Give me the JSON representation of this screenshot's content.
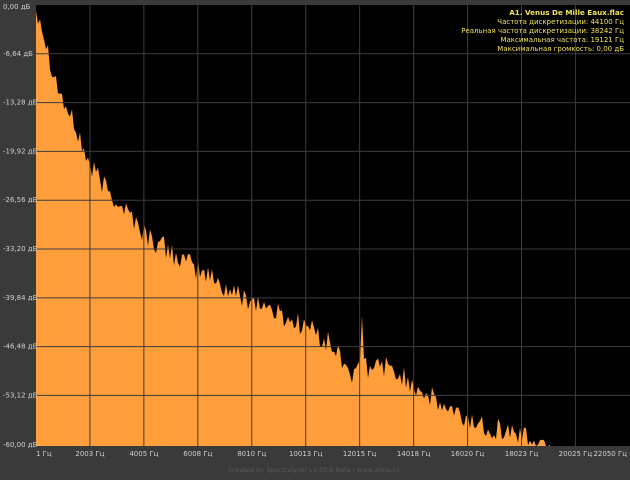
{
  "info": {
    "title": "A1. Venus De Mille Eaux.flac",
    "lines": [
      "Частота дискретизации: 44100 Гц",
      "Реальная частота дискретизации: 38242 Гц",
      "Максимальная частота: 19121 Гц",
      "Максимальная громкость: 0,00 дБ"
    ]
  },
  "footer": {
    "credit": "Created by Spectralyzer v1.00.6 Beta / www.aimp.ru"
  },
  "chart_data": {
    "type": "area",
    "title": "",
    "xlabel": "",
    "ylabel": "",
    "grid": true,
    "xlim": [
      1,
      22050
    ],
    "ylim": [
      -60,
      0
    ],
    "x_unit": "Гц",
    "y_unit": "дБ",
    "x_ticks": [
      1,
      2003,
      4005,
      6008,
      8010,
      10013,
      12015,
      14018,
      16020,
      18023,
      20025,
      22050
    ],
    "x_tick_labels": [
      "1 Гц",
      "2003 Гц",
      "4005 Гц",
      "6008 Гц",
      "8010 Гц",
      "10013 Гц",
      "12015 Гц",
      "14018 Гц",
      "16020 Гц",
      "18023 Гц",
      "20025 Гц",
      "22050 Гц"
    ],
    "y_ticks": [
      0,
      -6.64,
      -13.28,
      -19.92,
      -26.56,
      -33.2,
      -39.84,
      -46.48,
      -53.12,
      -60
    ],
    "y_tick_labels": [
      "0,00 дБ",
      "-6,64 дБ",
      "-13,28 дБ",
      "-19,92 дБ",
      "-26,56 дБ",
      "-33,20 дБ",
      "-39,84 дБ",
      "-46,48 дБ",
      "-53,12 дБ",
      "-60,00 дБ"
    ],
    "series": [
      {
        "fill_color": "#ff9e3a",
        "x": [
          1,
          150,
          300,
          500,
          800,
          1000,
          1500,
          2003,
          2500,
          3000,
          3500,
          4005,
          4500,
          5000,
          5500,
          6008,
          6500,
          7000,
          7500,
          8010,
          8500,
          9000,
          9500,
          10013,
          10500,
          11000,
          11300,
          11600,
          11900,
          12015,
          12100,
          12200,
          12400,
          12800,
          13200,
          13600,
          14018,
          14500,
          15000,
          15500,
          16020,
          16500,
          17000,
          17500,
          18023,
          18300,
          18500,
          18700,
          19121
        ],
        "y": [
          -0.5,
          -1.5,
          -4,
          -7,
          -11,
          -13,
          -17,
          -22,
          -24.5,
          -26.5,
          -28.5,
          -31,
          -32.5,
          -33.5,
          -35,
          -36,
          -37,
          -38.5,
          -39.5,
          -40,
          -41,
          -42,
          -43,
          -43.5,
          -45,
          -46.5,
          -48,
          -49.5,
          -51,
          -49,
          -43,
          -49,
          -50,
          -48.5,
          -50,
          -50.5,
          -51.5,
          -53,
          -54.5,
          -55.5,
          -56.5,
          -57,
          -57.5,
          -58,
          -58.5,
          -59,
          -59.3,
          -59.8,
          -60
        ]
      }
    ]
  }
}
